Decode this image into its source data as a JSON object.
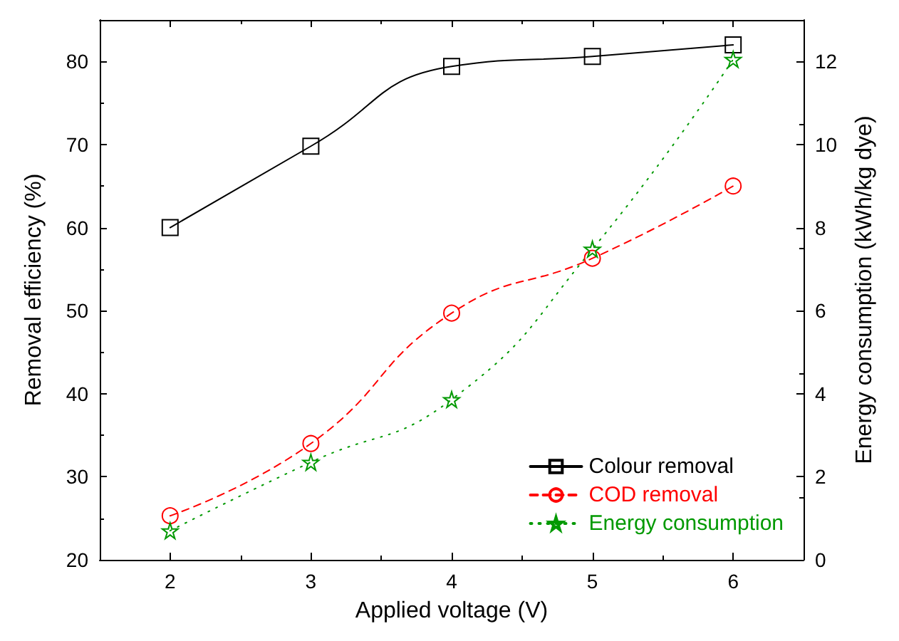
{
  "chart_data": {
    "type": "line",
    "xlabel": "Applied voltage (V)",
    "ylabel": "Removal efficiency (%)",
    "y2label": "Energy consumption (kWh/kg dye)",
    "x": [
      2,
      3,
      4,
      5,
      6
    ],
    "series": [
      {
        "name": "Colour removal",
        "color": "#000000",
        "values": [
          60,
          69.8,
          79.4,
          80.6,
          82
        ],
        "marker": "square",
        "line_style": "solid"
      },
      {
        "name": "COD removal",
        "color": "#ff0000",
        "values": [
          25.3,
          34,
          49.7,
          56.3,
          65
        ],
        "marker": "circle",
        "line_style": "dashed"
      },
      {
        "name": "Energy consumption",
        "color": "#009900",
        "values": [
          0.7,
          2.35,
          3.86,
          7.48,
          12.05
        ],
        "axis": "y2",
        "marker": "star",
        "line_style": "dotted"
      }
    ],
    "xlim": [
      1.5,
      6.5
    ],
    "xticks": [
      2,
      3,
      4,
      5,
      6
    ],
    "ylim": [
      20,
      85
    ],
    "yticks": [
      20,
      30,
      40,
      50,
      60,
      70,
      80
    ],
    "y2lim": [
      0,
      13
    ],
    "y2ticks": [
      0,
      2,
      4,
      6,
      8,
      10,
      12
    ],
    "grid": false,
    "legend": "bottom right"
  }
}
